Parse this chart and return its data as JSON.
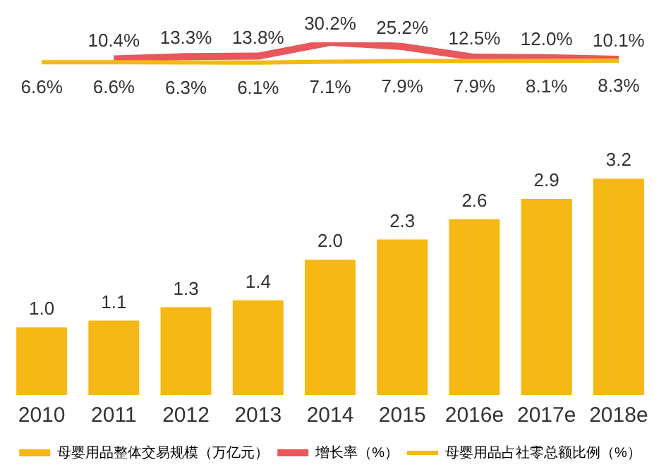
{
  "chart_data": [
    {
      "type": "line",
      "categories": [
        null,
        null,
        null,
        null,
        null,
        null,
        null,
        null,
        null
      ],
      "grid": false,
      "tick_labels": false,
      "series": [
        {
          "name": "增长率（%）",
          "color": "#e8575a",
          "values": [
            null,
            10.4,
            13.3,
            13.8,
            30.2,
            25.2,
            12.5,
            12.0,
            10.1
          ],
          "value_labels": [
            null,
            "10.4%",
            "13.3%",
            "13.8%",
            "30.2%",
            "25.2%",
            "12.5%",
            "12.0%",
            "10.1%"
          ]
        },
        {
          "name": "母婴用品占社零总额比例（%）",
          "color": "#f5b814",
          "values": [
            6.6,
            6.6,
            6.3,
            6.1,
            7.1,
            7.9,
            7.9,
            8.1,
            8.3
          ],
          "value_labels": [
            "6.6%",
            "6.6%",
            "6.3%",
            "6.1%",
            "7.1%",
            "7.9%",
            "7.9%",
            "8.1%",
            "8.3%"
          ]
        }
      ]
    },
    {
      "type": "bar",
      "categories": [
        "2010",
        "2011",
        "2012",
        "2013",
        "2014",
        "2015",
        "2016e",
        "2017e",
        "2018e"
      ],
      "grid": false,
      "tick_labels": "x",
      "legend": "bottom",
      "series": [
        {
          "name": "母婴用品整体交易规模（万亿元）",
          "color": "#f5b814",
          "values": [
            1.0,
            1.1,
            1.3,
            1.4,
            2.0,
            2.3,
            2.6,
            2.9,
            3.2
          ],
          "value_labels": [
            "1.0",
            "1.1",
            "1.3",
            "1.4",
            "2.0",
            "2.3",
            "2.6",
            "2.9",
            "3.2"
          ]
        }
      ]
    }
  ]
}
